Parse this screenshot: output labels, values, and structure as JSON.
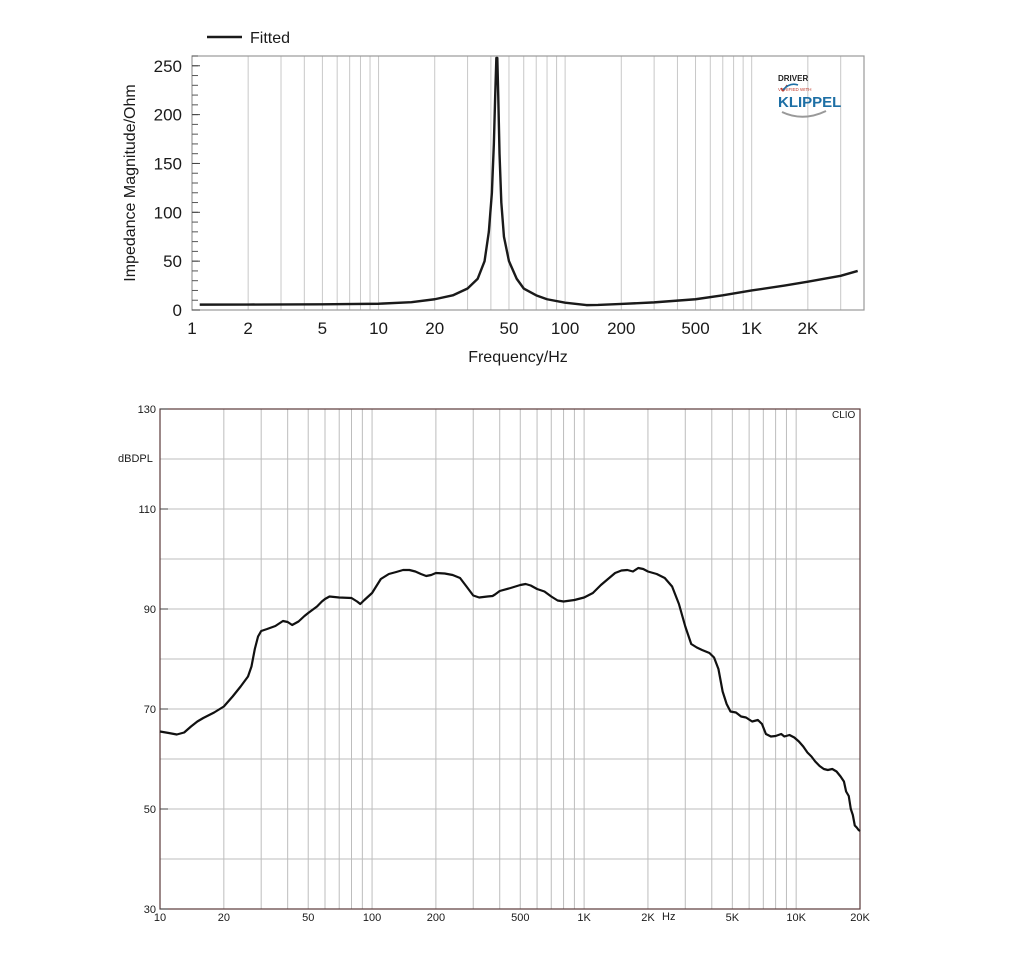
{
  "chart_data": [
    {
      "type": "line",
      "xlabel": "Frequency/Hz",
      "ylabel": "Impedance Magnitude/Ohm",
      "x_scale": "log",
      "xlim": [
        1,
        4000
      ],
      "ylim": [
        0,
        260
      ],
      "x_ticks": [
        1,
        2,
        5,
        10,
        20,
        50,
        100,
        200,
        500,
        1000,
        2000
      ],
      "x_tick_labels": [
        "1",
        "2",
        "5",
        "10",
        "20",
        "50",
        "100",
        "200",
        "500",
        "1K",
        "2K"
      ],
      "y_ticks": [
        0,
        50,
        100,
        150,
        200,
        250
      ],
      "grid": true,
      "legend": {
        "placement": "top-left",
        "entries": [
          "Fitted"
        ]
      },
      "logo": {
        "top": "DRIVER",
        "middle": "VERIFIED WITH",
        "name": "KLIPPEL",
        "color": "#1d6fa5"
      },
      "series": [
        {
          "name": "Fitted",
          "color": "#1a1a1a",
          "points": [
            [
              1.1,
              5.5
            ],
            [
              2,
              5.6
            ],
            [
              5,
              5.8
            ],
            [
              10,
              6.4
            ],
            [
              15,
              8
            ],
            [
              20,
              11
            ],
            [
              25,
              15
            ],
            [
              30,
              22
            ],
            [
              34,
              32
            ],
            [
              37,
              50
            ],
            [
              39,
              80
            ],
            [
              40.5,
              120
            ],
            [
              41.5,
              170
            ],
            [
              42.2,
              220
            ],
            [
              42.8,
              258
            ],
            [
              43.3,
              258
            ],
            [
              43.8,
              220
            ],
            [
              44.5,
              160
            ],
            [
              45.5,
              110
            ],
            [
              47,
              75
            ],
            [
              50,
              50
            ],
            [
              55,
              32
            ],
            [
              60,
              22
            ],
            [
              70,
              15
            ],
            [
              80,
              11
            ],
            [
              100,
              7.5
            ],
            [
              130,
              5
            ],
            [
              150,
              5.2
            ],
            [
              200,
              6.2
            ],
            [
              300,
              7.8
            ],
            [
              500,
              11
            ],
            [
              700,
              15
            ],
            [
              1000,
              20
            ],
            [
              1500,
              25
            ],
            [
              2000,
              29
            ],
            [
              3000,
              35
            ],
            [
              3700,
              40
            ]
          ]
        }
      ]
    },
    {
      "type": "line",
      "xlabel": "Hz",
      "ylabel": "dBDPL",
      "brand": "CLIO",
      "x_scale": "log",
      "xlim": [
        10,
        20000
      ],
      "ylim": [
        30,
        130
      ],
      "x_ticks": [
        10,
        20,
        50,
        100,
        200,
        500,
        1000,
        2000,
        5000,
        10000,
        20000
      ],
      "x_tick_labels": [
        "10",
        "20",
        "50",
        "100",
        "200",
        "500",
        "1K",
        "2K",
        "5K",
        "10K",
        "20K"
      ],
      "y_ticks": [
        30,
        50,
        70,
        90,
        110,
        130
      ],
      "grid": true,
      "series": [
        {
          "name": "",
          "color": "#111111",
          "points": [
            [
              10,
              65.5
            ],
            [
              11,
              65.2
            ],
            [
              12,
              64.9
            ],
            [
              13,
              65.3
            ],
            [
              14,
              66.5
            ],
            [
              15,
              67.5
            ],
            [
              16,
              68.2
            ],
            [
              18,
              69.3
            ],
            [
              20,
              70.5
            ],
            [
              22,
              72.5
            ],
            [
              24,
              74.5
            ],
            [
              26,
              76.5
            ],
            [
              27,
              78.5
            ],
            [
              28,
              82
            ],
            [
              29,
              84.5
            ],
            [
              30,
              85.6
            ],
            [
              32,
              86
            ],
            [
              35,
              86.6
            ],
            [
              38,
              87.6
            ],
            [
              40,
              87.4
            ],
            [
              42,
              86.8
            ],
            [
              45,
              87.5
            ],
            [
              48,
              88.6
            ],
            [
              50,
              89.2
            ],
            [
              55,
              90.5
            ],
            [
              58,
              91.5
            ],
            [
              60,
              92
            ],
            [
              63,
              92.5
            ],
            [
              70,
              92.3
            ],
            [
              80,
              92.2
            ],
            [
              85,
              91.5
            ],
            [
              88,
              91
            ],
            [
              92,
              91.8
            ],
            [
              100,
              93.2
            ],
            [
              110,
              96
            ],
            [
              120,
              97
            ],
            [
              130,
              97.4
            ],
            [
              140,
              97.8
            ],
            [
              150,
              97.8
            ],
            [
              160,
              97.5
            ],
            [
              170,
              97
            ],
            [
              180,
              96.6
            ],
            [
              190,
              96.8
            ],
            [
              200,
              97.2
            ],
            [
              220,
              97.1
            ],
            [
              240,
              96.8
            ],
            [
              260,
              96.2
            ],
            [
              280,
              94.4
            ],
            [
              300,
              92.7
            ],
            [
              320,
              92.3
            ],
            [
              350,
              92.5
            ],
            [
              370,
              92.6
            ],
            [
              380,
              92.9
            ],
            [
              400,
              93.6
            ],
            [
              450,
              94.2
            ],
            [
              500,
              94.8
            ],
            [
              530,
              95
            ],
            [
              560,
              94.7
            ],
            [
              600,
              94
            ],
            [
              650,
              93.5
            ],
            [
              700,
              92.5
            ],
            [
              750,
              91.7
            ],
            [
              800,
              91.5
            ],
            [
              900,
              91.8
            ],
            [
              1000,
              92.3
            ],
            [
              1100,
              93.2
            ],
            [
              1200,
              94.8
            ],
            [
              1400,
              97.2
            ],
            [
              1500,
              97.7
            ],
            [
              1600,
              97.8
            ],
            [
              1700,
              97.5
            ],
            [
              1800,
              98.2
            ],
            [
              1900,
              98
            ],
            [
              2000,
              97.5
            ],
            [
              2200,
              97
            ],
            [
              2400,
              96.2
            ],
            [
              2600,
              94.5
            ],
            [
              2800,
              91
            ],
            [
              3000,
              86.5
            ],
            [
              3200,
              83
            ],
            [
              3400,
              82.3
            ],
            [
              3600,
              81.8
            ],
            [
              3900,
              81.2
            ],
            [
              4100,
              80.3
            ],
            [
              4300,
              78
            ],
            [
              4500,
              73.5
            ],
            [
              4700,
              71
            ],
            [
              4900,
              69.5
            ],
            [
              5200,
              69.3
            ],
            [
              5500,
              68.5
            ],
            [
              5800,
              68.3
            ],
            [
              6200,
              67.5
            ],
            [
              6600,
              67.8
            ],
            [
              6900,
              67
            ],
            [
              7200,
              65
            ],
            [
              7600,
              64.5
            ],
            [
              8000,
              64.6
            ],
            [
              8500,
              65
            ],
            [
              8800,
              64.5
            ],
            [
              9300,
              64.8
            ],
            [
              9800,
              64.3
            ],
            [
              10300,
              63.5
            ],
            [
              10800,
              62.5
            ],
            [
              11300,
              61.3
            ],
            [
              11800,
              60.5
            ],
            [
              12300,
              59.5
            ],
            [
              12900,
              58.6
            ],
            [
              13500,
              58
            ],
            [
              14100,
              57.8
            ],
            [
              14800,
              58
            ],
            [
              15500,
              57.5
            ],
            [
              16200,
              56.5
            ],
            [
              16800,
              55.5
            ],
            [
              17200,
              53.5
            ],
            [
              17700,
              52.6
            ],
            [
              18100,
              50
            ],
            [
              18500,
              48.8
            ],
            [
              18900,
              46.7
            ],
            [
              19300,
              46.3
            ],
            [
              19700,
              45.8
            ],
            [
              20000,
              45.6
            ]
          ]
        }
      ]
    }
  ]
}
